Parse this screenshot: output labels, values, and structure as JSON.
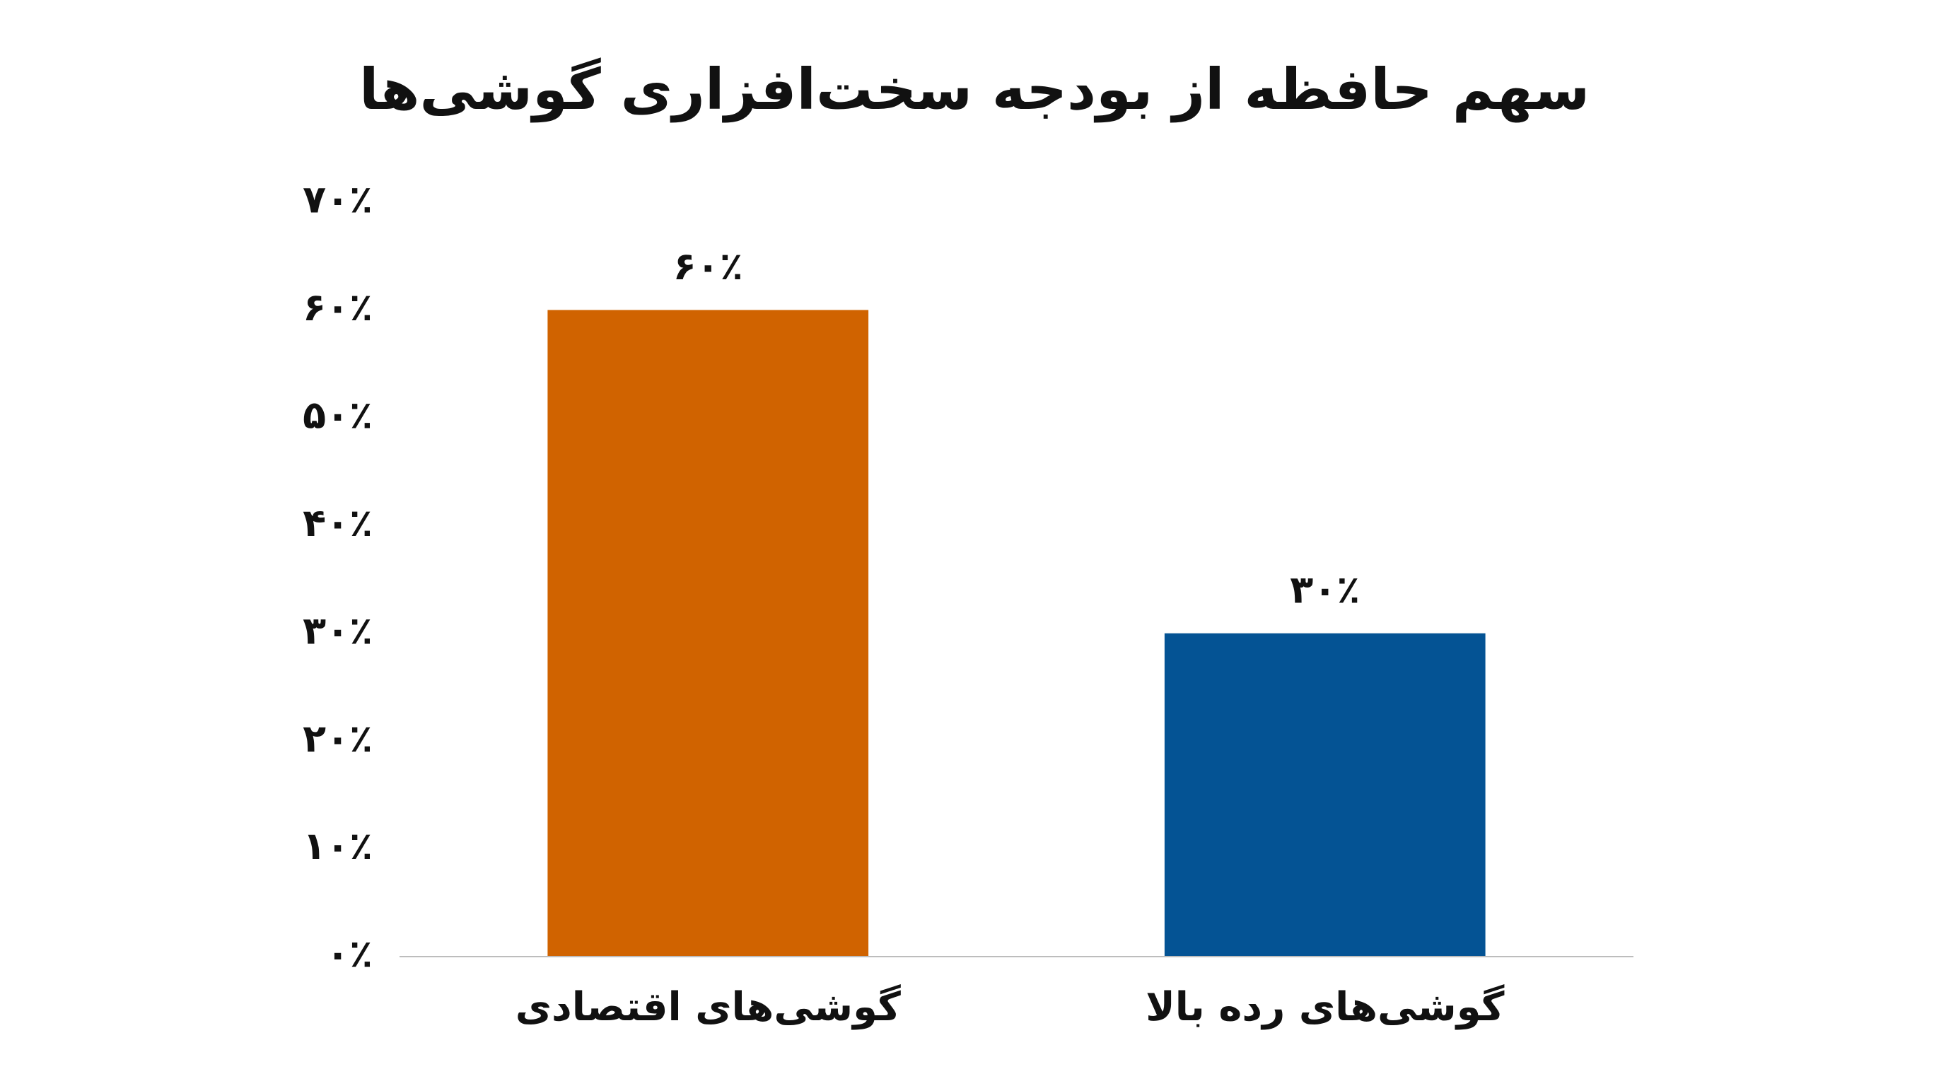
{
  "chart_data": {
    "type": "bar",
    "title": "سهم حافظه از بودجه سخت‌افزاری گوشی‌ها",
    "categories": [
      "گوشی‌های اقتصادی",
      "گوشی‌های رده بالا"
    ],
    "values": [
      60,
      30
    ],
    "value_labels": [
      "۶۰٪",
      "۳۰٪"
    ],
    "colors": [
      "#d06300",
      "#045394"
    ],
    "ylim": [
      0,
      70
    ],
    "yticks": [
      {
        "value": 0,
        "label": "۰٪"
      },
      {
        "value": 10,
        "label": "۱۰٪"
      },
      {
        "value": 20,
        "label": "۲۰٪"
      },
      {
        "value": 30,
        "label": "۳۰٪"
      },
      {
        "value": 40,
        "label": "۴۰٪"
      },
      {
        "value": 50,
        "label": "۵۰٪"
      },
      {
        "value": 60,
        "label": "۶۰٪"
      },
      {
        "value": 70,
        "label": "۷۰٪"
      }
    ],
    "grid": false
  }
}
